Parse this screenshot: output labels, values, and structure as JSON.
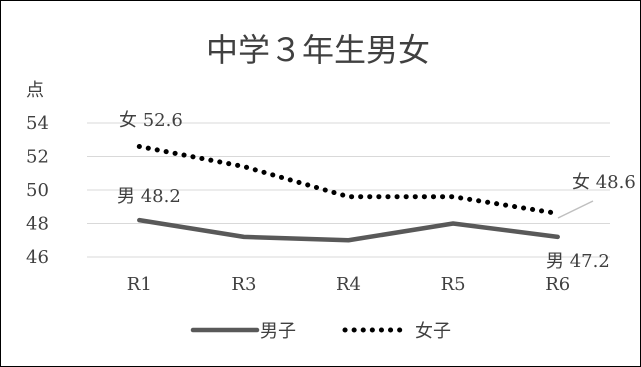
{
  "chart_data": {
    "type": "line",
    "title": "中学３年生男女",
    "ylabel": "点",
    "categories": [
      "R1",
      "R3",
      "R4",
      "R5",
      "R6"
    ],
    "ylim": [
      46,
      54
    ],
    "yticks": [
      "46",
      "48",
      "50",
      "52",
      "54"
    ],
    "grid": true,
    "legend": "bottom",
    "series": [
      {
        "name": "男子",
        "values": [
          48.2,
          47.2,
          47.0,
          48.0,
          47.2
        ],
        "color": "#595959",
        "style": "solid"
      },
      {
        "name": "女子",
        "values": [
          52.6,
          51.4,
          49.6,
          49.6,
          48.6
        ],
        "color": "#000000",
        "style": "dotted"
      }
    ],
    "annotations": [
      {
        "text": "女 52.6",
        "series": "女子",
        "category": "R1"
      },
      {
        "text": "男 48.2",
        "series": "男子",
        "category": "R1"
      },
      {
        "text": "女 48.6",
        "series": "女子",
        "category": "R6"
      },
      {
        "text": "男 47.2",
        "series": "男子",
        "category": "R6"
      }
    ]
  }
}
